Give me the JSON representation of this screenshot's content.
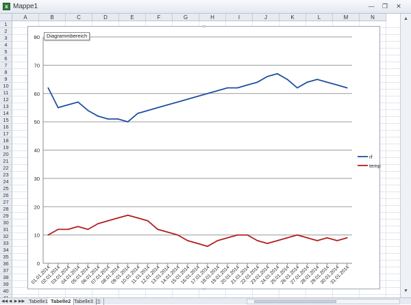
{
  "window": {
    "title": "Mappe1"
  },
  "columns": [
    "A",
    "B",
    "C",
    "D",
    "E",
    "F",
    "G",
    "H",
    "I",
    "J",
    "K",
    "L",
    "M",
    "N"
  ],
  "rows": [
    "1",
    "2",
    "3",
    "4",
    "5",
    "6",
    "7",
    "8",
    "9",
    "10",
    "11",
    "12",
    "13",
    "14",
    "15",
    "16",
    "17",
    "18",
    "19",
    "20",
    "21",
    "22",
    "23",
    "24",
    "25",
    "26",
    "27",
    "28",
    "29",
    "30",
    "31",
    "32",
    "33",
    "34",
    "35",
    "36",
    "37",
    "38",
    "39",
    "40",
    "41"
  ],
  "chart_tooltip": "Diagrammbereich",
  "sheets": [
    {
      "label": "Tabelle1",
      "active": false
    },
    {
      "label": "Tabelle2",
      "active": true
    },
    {
      "label": "Tabelle3",
      "active": false
    }
  ],
  "chart_data": {
    "type": "line",
    "ylim": [
      0,
      80
    ],
    "yticks": [
      0,
      10,
      20,
      30,
      40,
      50,
      60,
      70,
      80
    ],
    "grid": true,
    "legend_position": "right",
    "categories": [
      "01.01.2014",
      "02.01.2014",
      "03.01.2014",
      "04.01.2014",
      "05.01.2014",
      "06.01.2014",
      "07.01.2014",
      "08.01.2014",
      "09.01.2014",
      "10.01.2014",
      "11.01.2014",
      "12.01.2014",
      "13.01.2014",
      "14.01.2014",
      "15.01.2014",
      "16.01.2014",
      "17.01.2014",
      "18.01.2014",
      "19.01.2014",
      "20.01.2014",
      "21.01.2014",
      "22.01.2014",
      "23.01.2014",
      "24.01.2014",
      "25.01.2014",
      "26.01.2014",
      "27.01.2014",
      "28.01.2014",
      "29.01.2014",
      "30.01.2014",
      "31.01.2014"
    ],
    "series": [
      {
        "name": "rf",
        "color": "#1f4e9c",
        "values": [
          62,
          55,
          56,
          57,
          54,
          52,
          51,
          51,
          50,
          53,
          54,
          55,
          56,
          57,
          58,
          59,
          60,
          61,
          62,
          62,
          63,
          64,
          66,
          67,
          65,
          62,
          64,
          65,
          64,
          63,
          62
        ]
      },
      {
        "name": "temp",
        "color": "#b01c1c",
        "values": [
          10,
          12,
          12,
          13,
          12,
          14,
          15,
          16,
          17,
          16,
          15,
          12,
          11,
          10,
          8,
          7,
          6,
          8,
          9,
          10,
          10,
          8,
          7,
          8,
          9,
          10,
          9,
          8,
          9,
          8,
          9
        ]
      }
    ]
  }
}
